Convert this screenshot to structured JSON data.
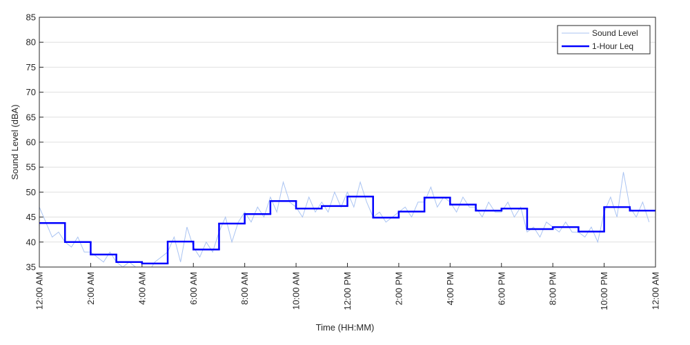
{
  "chart_data": {
    "type": "line",
    "xlabel": "Time (HH:MM)",
    "ylabel": "Sound Level (dBA)",
    "xlim": [
      0,
      24
    ],
    "xticks": [
      {
        "value": 0,
        "label": "12:00 AM"
      },
      {
        "value": 2,
        "label": "2:00 AM"
      },
      {
        "value": 4,
        "label": "4:00 AM"
      },
      {
        "value": 6,
        "label": "6:00 AM"
      },
      {
        "value": 8,
        "label": "8:00 AM"
      },
      {
        "value": 10,
        "label": "10:00 AM"
      },
      {
        "value": 12,
        "label": "12:00 PM"
      },
      {
        "value": 14,
        "label": "2:00 PM"
      },
      {
        "value": 16,
        "label": "4:00 PM"
      },
      {
        "value": 18,
        "label": "6:00 PM"
      },
      {
        "value": 20,
        "label": "8:00 PM"
      },
      {
        "value": 22,
        "label": "10:00 PM"
      },
      {
        "value": 24,
        "label": "12:00 AM"
      }
    ],
    "ylim": [
      35,
      85
    ],
    "yticks": [
      35,
      40,
      45,
      50,
      55,
      60,
      65,
      70,
      75,
      80,
      85
    ],
    "grid": true,
    "legend": "upper right",
    "series": [
      {
        "name": "Sound Level",
        "color": "#a9c3f2",
        "step": false,
        "x": [
          0,
          0.25,
          0.5,
          0.75,
          1,
          1.25,
          1.5,
          1.75,
          2,
          2.25,
          2.5,
          2.75,
          3,
          3.25,
          3.5,
          3.75,
          4,
          4.25,
          4.5,
          4.75,
          5,
          5.25,
          5.5,
          5.75,
          6,
          6.25,
          6.5,
          6.75,
          7,
          7.25,
          7.5,
          7.75,
          8,
          8.25,
          8.5,
          8.75,
          9,
          9.25,
          9.5,
          9.75,
          10,
          10.25,
          10.5,
          10.75,
          11,
          11.25,
          11.5,
          11.75,
          12,
          12.25,
          12.5,
          12.75,
          13,
          13.25,
          13.5,
          13.75,
          14,
          14.25,
          14.5,
          14.75,
          15,
          15.25,
          15.5,
          15.75,
          16,
          16.25,
          16.5,
          16.75,
          17,
          17.25,
          17.5,
          17.75,
          18,
          18.25,
          18.5,
          18.75,
          19,
          19.25,
          19.5,
          19.75,
          20,
          20.25,
          20.5,
          20.75,
          21,
          21.25,
          21.5,
          21.75,
          22,
          22.25,
          22.5,
          22.75,
          23,
          23.25,
          23.5,
          23.75
        ],
        "values": [
          47,
          44,
          41,
          42,
          40,
          39,
          41,
          38,
          38,
          37,
          36,
          38,
          36,
          35,
          36,
          35,
          35,
          34,
          36,
          37,
          38,
          41,
          36,
          43,
          39,
          37,
          40,
          38,
          42,
          45,
          40,
          44,
          46,
          44,
          47,
          45,
          49,
          46,
          52,
          48,
          47,
          45,
          49,
          46,
          48,
          46,
          50,
          47,
          50,
          47,
          52,
          48,
          45,
          46,
          44,
          45,
          46,
          47,
          45,
          48,
          48,
          51,
          47,
          49,
          48,
          46,
          49,
          47,
          47,
          45,
          48,
          46,
          46,
          48,
          45,
          47,
          42,
          43,
          41,
          44,
          43,
          42,
          44,
          42,
          42,
          41,
          43,
          40,
          46,
          49,
          45,
          54,
          47,
          45,
          48,
          44
        ]
      },
      {
        "name": "1-Hour Leq",
        "color": "#0000ff",
        "step": true,
        "x": [
          0,
          1,
          2,
          3,
          4,
          5,
          6,
          7,
          8,
          9,
          10,
          11,
          12,
          13,
          14,
          15,
          16,
          17,
          18,
          19,
          20,
          21,
          22,
          23
        ],
        "values": [
          43.8,
          40.0,
          37.5,
          36.0,
          35.7,
          40.1,
          38.5,
          43.7,
          45.6,
          48.2,
          46.7,
          47.2,
          49.1,
          44.9,
          46.1,
          48.9,
          47.5,
          46.3,
          46.7,
          42.6,
          43.0,
          42.1,
          47.0,
          46.3
        ]
      }
    ]
  }
}
